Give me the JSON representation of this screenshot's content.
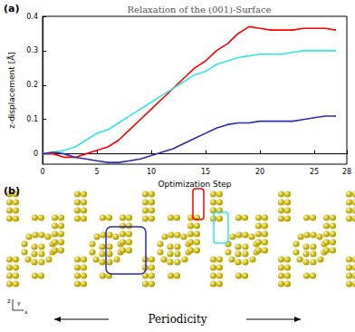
{
  "chart_data": {
    "type": "line",
    "title": "Relaxation of the (001)-Surface",
    "x_label": "Optimization Step",
    "y_label": "z-displacement [Å]",
    "annotations": [
      "(a)"
    ],
    "x": [
      0,
      1,
      2,
      3,
      4,
      5,
      6,
      7,
      8,
      9,
      10,
      11,
      12,
      13,
      14,
      15,
      16,
      17,
      18,
      19,
      20,
      21,
      22,
      23,
      24,
      25,
      26,
      27
    ],
    "series": [
      {
        "color": "#ff0000",
        "values": [
          0,
          0,
          -0.01,
          -0.01,
          0,
          0.01,
          0.02,
          0.04,
          0.07,
          0.1,
          0.13,
          0.16,
          0.19,
          0.22,
          0.25,
          0.27,
          0.3,
          0.32,
          0.35,
          0.37,
          0.365,
          0.36,
          0.36,
          0.36,
          0.365,
          0.365,
          0.365,
          0.36
        ]
      },
      {
        "color": "#33e6e6",
        "values": [
          0,
          0.005,
          0.01,
          0.02,
          0.04,
          0.06,
          0.07,
          0.09,
          0.11,
          0.13,
          0.15,
          0.17,
          0.19,
          0.21,
          0.23,
          0.24,
          0.26,
          0.27,
          0.28,
          0.285,
          0.29,
          0.29,
          0.29,
          0.295,
          0.3,
          0.3,
          0.3,
          0.3
        ]
      },
      {
        "color": "#2a2ab0",
        "values": [
          0,
          0.005,
          0,
          -0.01,
          -0.015,
          -0.02,
          -0.025,
          -0.025,
          -0.02,
          -0.015,
          -0.005,
          0.005,
          0.015,
          0.03,
          0.045,
          0.06,
          0.075,
          0.085,
          0.09,
          0.09,
          0.095,
          0.095,
          0.095,
          0.095,
          0.1,
          0.105,
          0.11,
          0.11
        ]
      }
    ],
    "xlim": [
      0,
      28
    ],
    "xticks": [
      0,
      5,
      10,
      15,
      20,
      25
    ],
    "ylim": [
      -0.03,
      0.4
    ],
    "yticks": [
      0,
      0.1,
      0.2,
      0.3,
      0.4
    ],
    "grid": false
  },
  "structure": {
    "label": "(b)",
    "caption": "Periodicity",
    "axes": [
      "z",
      "y",
      "x"
    ]
  }
}
